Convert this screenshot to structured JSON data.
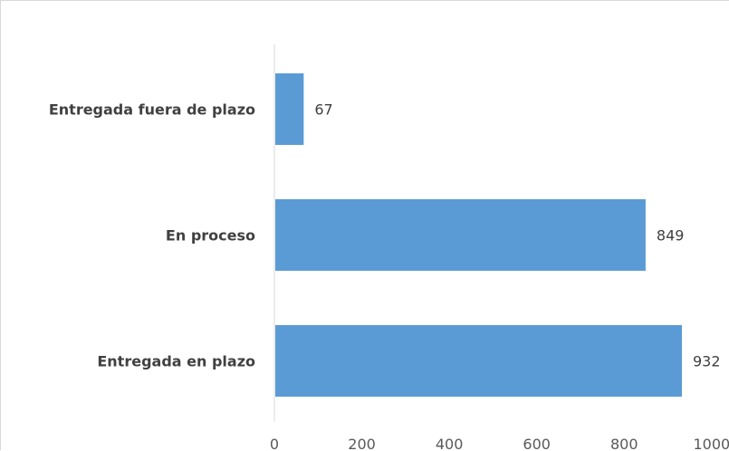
{
  "chart_data": {
    "type": "bar",
    "orientation": "horizontal",
    "categories": [
      "Entregada fuera de plazo",
      "En proceso",
      "Entregada en plazo"
    ],
    "values": [
      67,
      849,
      932
    ],
    "data_labels": [
      "67",
      "849",
      "932"
    ],
    "xlim": [
      0,
      1000
    ],
    "x_ticks": [
      0,
      200,
      400,
      600,
      800,
      1000
    ],
    "x_tick_labels": [
      "0",
      "200",
      "400",
      "600",
      "800",
      "1000"
    ],
    "grid": false,
    "legend": "none",
    "bar_color": "#5b9bd5"
  }
}
